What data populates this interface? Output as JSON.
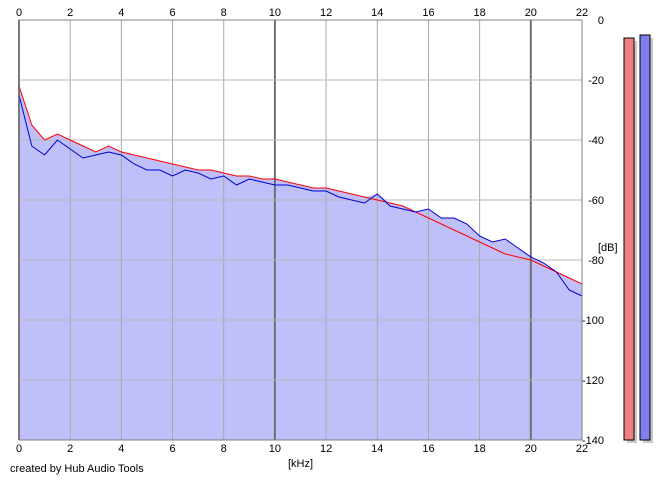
{
  "chart_data": {
    "type": "line",
    "title": "",
    "xlabel": "[kHz]",
    "ylabel": "[dB]",
    "xlim": [
      0,
      22
    ],
    "ylim": [
      -140,
      0
    ],
    "x_ticks": [
      "0",
      "2",
      "4",
      "6",
      "8",
      "10",
      "12",
      "14",
      "16",
      "18",
      "20",
      "22"
    ],
    "y_ticks": [
      "0",
      "-20",
      "-40",
      "-60",
      "-80",
      "-100",
      "-120",
      "-140"
    ],
    "grid": true,
    "fill_color": "#bfbffa",
    "series": [
      {
        "color": "#ff0000",
        "x": [
          0,
          0.5,
          1,
          1.5,
          2,
          2.5,
          3,
          3.5,
          4,
          4.5,
          5,
          5.5,
          6,
          6.5,
          7,
          7.5,
          8,
          8.5,
          9,
          9.5,
          10,
          10.5,
          11,
          11.5,
          12,
          12.5,
          13,
          13.5,
          14,
          14.5,
          15,
          15.5,
          16,
          16.5,
          17,
          17.5,
          18,
          18.5,
          19,
          19.5,
          20,
          20.5,
          21,
          21.5,
          22
        ],
        "y": [
          -22,
          -35,
          -40,
          -38,
          -40,
          -42,
          -44,
          -42,
          -44,
          -45,
          -46,
          -47,
          -48,
          -49,
          -50,
          -50,
          -51,
          -52,
          -52,
          -53,
          -53,
          -54,
          -55,
          -56,
          -56,
          -57,
          -58,
          -59,
          -60,
          -61,
          -62,
          -64,
          -66,
          -68,
          -70,
          -72,
          -74,
          -76,
          -78,
          -79,
          -80,
          -82,
          -84,
          -86,
          -88
        ]
      },
      {
        "color": "#0000cc",
        "x": [
          0,
          0.5,
          1,
          1.5,
          2,
          2.5,
          3,
          3.5,
          4,
          4.5,
          5,
          5.5,
          6,
          6.5,
          7,
          7.5,
          8,
          8.5,
          9,
          9.5,
          10,
          10.5,
          11,
          11.5,
          12,
          12.5,
          13,
          13.5,
          14,
          14.5,
          15,
          15.5,
          16,
          16.5,
          17,
          17.5,
          18,
          18.5,
          19,
          19.5,
          20,
          20.5,
          21,
          21.5,
          22
        ],
        "y": [
          -25,
          -42,
          -45,
          -40,
          -43,
          -46,
          -45,
          -44,
          -45,
          -48,
          -50,
          -50,
          -52,
          -50,
          -51,
          -53,
          -52,
          -55,
          -53,
          -54,
          -55,
          -55,
          -56,
          -57,
          -57,
          -59,
          -60,
          -61,
          -58,
          -62,
          -63,
          -64,
          -63,
          -66,
          -66,
          -68,
          -72,
          -74,
          -73,
          -76,
          -79,
          -81,
          -84,
          -90,
          -92
        ]
      }
    ]
  },
  "level_meters": [
    {
      "color": "#ec8080",
      "level_db": -6
    },
    {
      "color": "#8080ec",
      "level_db": -5
    }
  ],
  "credit": "created by Hub Audio Tools"
}
